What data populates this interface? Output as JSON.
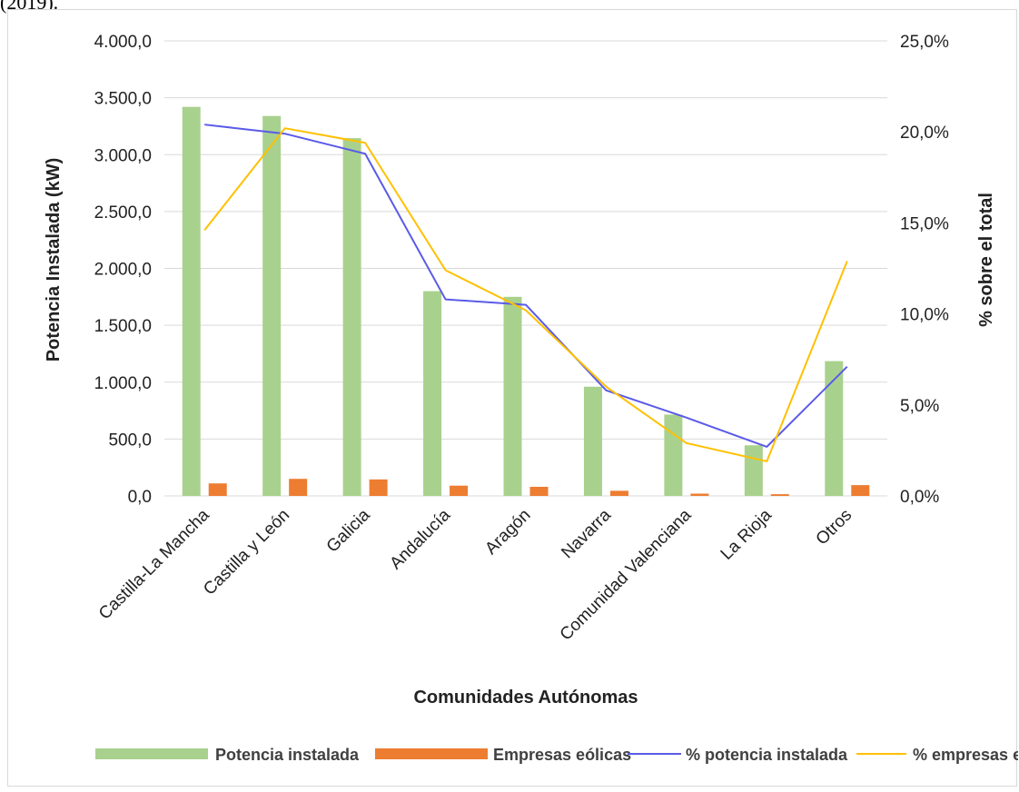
{
  "caption_fragment": "(2019).",
  "chart_data": {
    "type": "bar",
    "categories": [
      "Castilla-La Mancha",
      "Castilla y León",
      "Galicia",
      "Andalucía",
      "Aragón",
      "Navarra",
      "Comunidad Valenciana",
      "La Rioja",
      "Otros"
    ],
    "series": [
      {
        "name": "Potencia instalada",
        "kind": "bar",
        "axis": "left",
        "color": "#a9d18e",
        "values": [
          3420,
          3340,
          3145,
          1800,
          1750,
          960,
          715,
          445,
          1185
        ]
      },
      {
        "name": "Empresas eólicas",
        "kind": "bar",
        "axis": "left",
        "color": "#ed7d31",
        "values": [
          110,
          150,
          145,
          90,
          80,
          45,
          20,
          15,
          95
        ]
      },
      {
        "name": "% potencia instalada",
        "kind": "line",
        "axis": "right",
        "color": "#5a5ae8",
        "values": [
          20.4,
          19.9,
          18.8,
          10.8,
          10.5,
          5.8,
          4.3,
          2.7,
          7.1
        ]
      },
      {
        "name": "% empresas eólicas",
        "kind": "line",
        "axis": "right",
        "color": "#ffc000",
        "values": [
          14.6,
          20.2,
          19.4,
          12.4,
          10.2,
          6.0,
          2.9,
          1.9,
          12.9
        ]
      }
    ],
    "ylabel": "Potencia Instalada (kW)",
    "y2label": "% sobre el total",
    "xlabel": "Comunidades Autónomas",
    "ylim": [
      0,
      4000
    ],
    "y2lim": [
      0,
      25
    ],
    "yticks": [
      "0,0",
      "500,0",
      "1.000,0",
      "1.500,0",
      "2.000,0",
      "2.500,0",
      "3.000,0",
      "3.500,0",
      "4.000,0"
    ],
    "y2ticks": [
      "0,0%",
      "5,0%",
      "10,0%",
      "15,0%",
      "20,0%",
      "25,0%"
    ],
    "grid": true,
    "legend_position": "bottom"
  }
}
